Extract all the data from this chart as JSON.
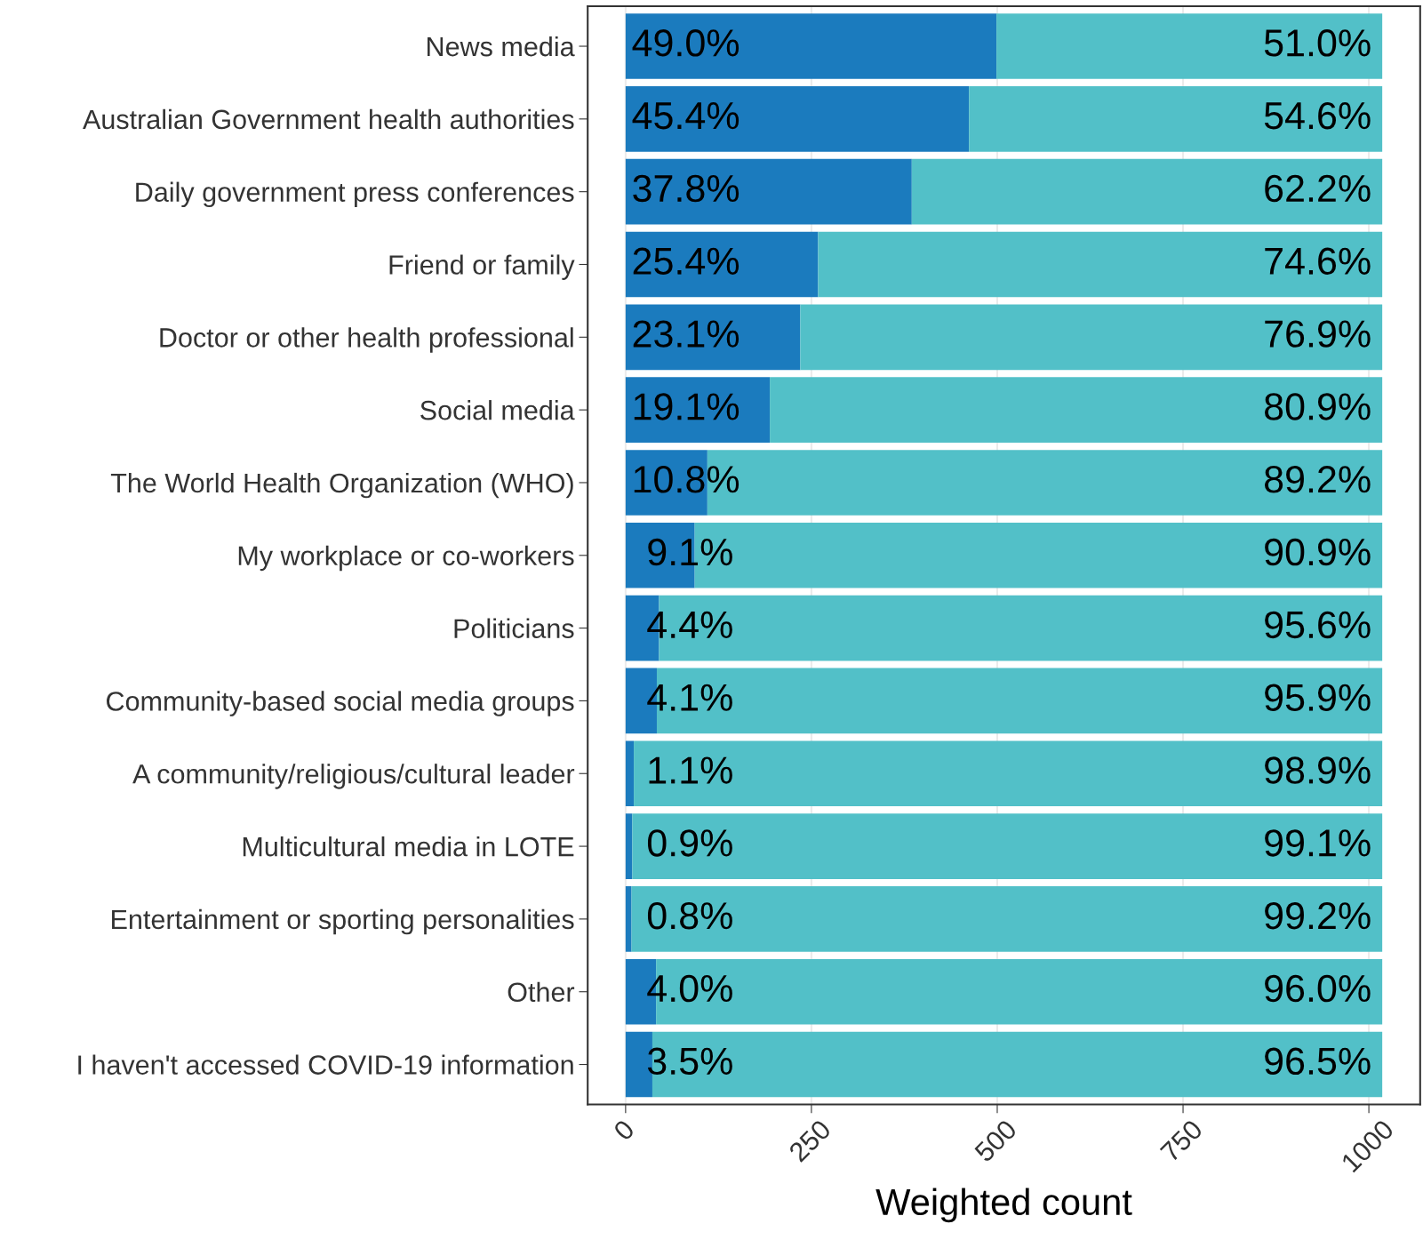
{
  "chart_data": {
    "type": "bar",
    "orientation": "horizontal",
    "stacked": true,
    "xlabel": "Weighted count",
    "categories": [
      "News media",
      "Australian Government health authorities",
      "Daily government press conferences",
      "Friend or family",
      "Doctor or other health professional",
      "Social media",
      "The World Health Organization (WHO)",
      "My workplace or co-workers",
      "Politicians",
      "Community-based social media groups",
      "A community/religious/cultural leader",
      "Multicultural media in LOTE",
      "Entertainment or sporting personalities",
      "Other",
      "I haven't accessed COVID-19 information"
    ],
    "series": [
      {
        "color": "#1b7bbe",
        "values": [
          499,
          462,
          385,
          259,
          235,
          194,
          110,
          93,
          45,
          42,
          11,
          9,
          8,
          41,
          36
        ]
      },
      {
        "color": "#52c0c8",
        "values": [
          519,
          556,
          633,
          759,
          783,
          824,
          908,
          925,
          973,
          976,
          1007,
          1009,
          1010,
          977,
          982
        ]
      }
    ],
    "annotations": [
      {
        "text": "49.0%",
        "x": 8,
        "y": "News media"
      },
      {
        "text": "45.4%",
        "x": 8,
        "y": "Australian Government health authorities"
      },
      {
        "text": "37.8%",
        "x": 8,
        "y": "Daily government press conferences"
      },
      {
        "text": "25.4%",
        "x": 8,
        "y": "Friend or family"
      },
      {
        "text": "23.1%",
        "x": 8,
        "y": "Doctor or other health professional"
      },
      {
        "text": "19.1%",
        "x": 8,
        "y": "Social media"
      },
      {
        "text": "10.8%",
        "x": 8,
        "y": "The World Health Organization (WHO)"
      },
      {
        "text": "9.1%",
        "x": 28,
        "y": "My workplace or co-workers"
      },
      {
        "text": "4.4%",
        "x": 28,
        "y": "Politicians"
      },
      {
        "text": "4.1%",
        "x": 28,
        "y": "Community-based social media groups"
      },
      {
        "text": "1.1%",
        "x": 28,
        "y": "A community/religious/cultural leader"
      },
      {
        "text": "0.9%",
        "x": 28,
        "y": "Multicultural media in LOTE"
      },
      {
        "text": "0.8%",
        "x": 28,
        "y": "Entertainment or sporting personalities"
      },
      {
        "text": "4.0%",
        "x": 28,
        "y": "Other"
      },
      {
        "text": "3.5%",
        "x": 28,
        "y": "I haven't accessed COVID-19 information"
      },
      {
        "text": "51.0%",
        "x": 1018,
        "y": "News media"
      },
      {
        "text": "54.6%",
        "x": 1018,
        "y": "Australian Government health authorities"
      },
      {
        "text": "62.2%",
        "x": 1018,
        "y": "Daily government press conferences"
      },
      {
        "text": "74.6%",
        "x": 1018,
        "y": "Friend or family"
      },
      {
        "text": "76.9%",
        "x": 1018,
        "y": "Doctor or other health professional"
      },
      {
        "text": "80.9%",
        "x": 1018,
        "y": "Social media"
      },
      {
        "text": "89.2%",
        "x": 1018,
        "y": "The World Health Organization (WHO)"
      },
      {
        "text": "90.9%",
        "x": 1018,
        "y": "My workplace or co-workers"
      },
      {
        "text": "95.6%",
        "x": 1018,
        "y": "Politicians"
      },
      {
        "text": "95.9%",
        "x": 1018,
        "y": "Community-based social media groups"
      },
      {
        "text": "98.9%",
        "x": 1018,
        "y": "A community/religious/cultural leader"
      },
      {
        "text": "99.1%",
        "x": 1018,
        "y": "Multicultural media in LOTE"
      },
      {
        "text": "99.2%",
        "x": 1018,
        "y": "Entertainment or sporting personalities"
      },
      {
        "text": "96.0%",
        "x": 1018,
        "y": "Other"
      },
      {
        "text": "96.5%",
        "x": 1018,
        "y": "I haven't accessed COVID-19 information"
      }
    ],
    "xlim": [
      -51,
      1069
    ],
    "xticks": [
      0,
      250,
      500,
      750,
      1000
    ],
    "grid": "x",
    "legend": false
  }
}
